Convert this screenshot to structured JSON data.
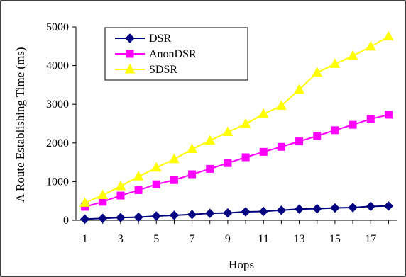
{
  "chart_data": {
    "type": "line",
    "xlabel": "Hops",
    "ylabel": "A Route Establishing Time (ms)",
    "x": [
      1,
      2,
      3,
      4,
      5,
      6,
      7,
      8,
      9,
      10,
      11,
      12,
      13,
      14,
      15,
      16,
      17,
      18
    ],
    "x_tick_labels": [
      "1",
      "3",
      "5",
      "7",
      "9",
      "11",
      "13",
      "15",
      "17"
    ],
    "x_tick_values": [
      1,
      3,
      5,
      7,
      9,
      11,
      13,
      15,
      17
    ],
    "y_tick_labels": [
      "0",
      "1000",
      "2000",
      "3000",
      "4000",
      "5000"
    ],
    "y_tick_values": [
      0,
      1000,
      2000,
      3000,
      4000,
      5000
    ],
    "ylim": [
      0,
      5000
    ],
    "xlim": [
      0.5,
      18.5
    ],
    "grid": false,
    "legend_position": "top-left",
    "series": [
      {
        "name": "DSR",
        "color": "#000080",
        "marker": "diamond",
        "values": [
          30,
          50,
          70,
          80,
          110,
          130,
          150,
          180,
          190,
          220,
          230,
          260,
          290,
          300,
          320,
          330,
          360,
          370
        ]
      },
      {
        "name": "AnonDSR",
        "color": "#FF00FF",
        "marker": "square",
        "values": [
          350,
          480,
          640,
          780,
          930,
          1040,
          1190,
          1330,
          1480,
          1630,
          1770,
          1900,
          2040,
          2180,
          2330,
          2470,
          2620,
          2730
        ]
      },
      {
        "name": "SDSR",
        "color": "#FFFF00",
        "marker": "triangle",
        "values": [
          450,
          650,
          880,
          1130,
          1360,
          1580,
          1840,
          2060,
          2280,
          2490,
          2750,
          2960,
          3380,
          3820,
          4040,
          4250,
          4490,
          4750
        ]
      }
    ]
  }
}
